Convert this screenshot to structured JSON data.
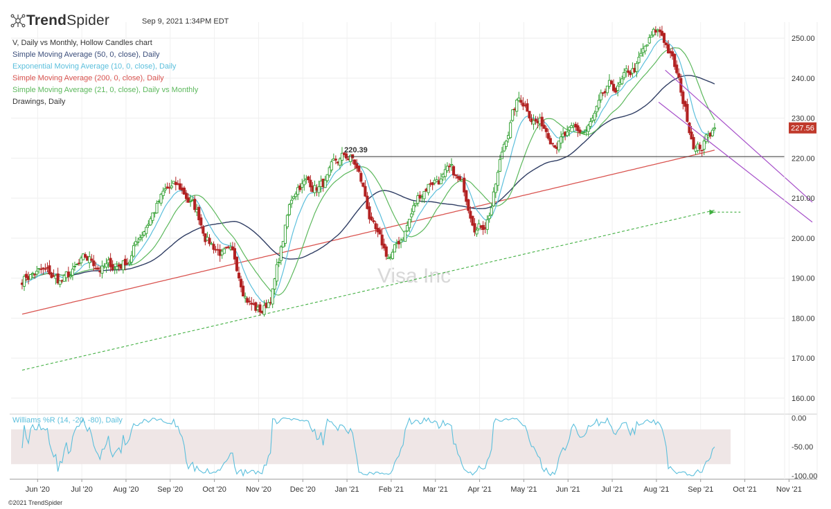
{
  "header": {
    "brand_light": "Trend",
    "brand_bold": "Spider",
    "timestamp": "Sep 9, 2021 1:34PM EDT",
    "copyright": "©2021 TrendSpider"
  },
  "indicators": [
    {
      "label": "V, Daily vs Monthly, Hollow Candles chart",
      "color": "#333333"
    },
    {
      "label": "Simple Moving Average (50, 0, close), Daily",
      "color": "#3a4d7a"
    },
    {
      "label": "Exponential Moving Average (10, 0, close), Daily",
      "color": "#5bbfdc"
    },
    {
      "label": "Simple Moving Average (200, 0, close), Daily",
      "color": "#d9534f"
    },
    {
      "label": "Simple Moving Average (21, 0, close), Daily vs Monthly",
      "color": "#5cb85c"
    },
    {
      "label": "Drawings, Daily",
      "color": "#333333"
    }
  ],
  "colors": {
    "up": "#2e9e2e",
    "down": "#b22222",
    "sma50": "#2f3d63",
    "ema10": "#5bbfdc",
    "sma200": "#d9534f",
    "sma21": "#5cb85c",
    "monthly_sma": "#3fae3f",
    "channel": "#a64fc9",
    "williams": "#5bbfdc",
    "williams_band": "#efe6e6"
  },
  "chart_data": {
    "type": "candlestick",
    "symbol": "V",
    "watermark": "Visa Inc",
    "price_axis": {
      "ticks": [
        160,
        170,
        180,
        190,
        200,
        210,
        220,
        230,
        240,
        250
      ],
      "ylim": [
        156,
        254
      ]
    },
    "x_ticks": [
      "Jun '20",
      "Jul '20",
      "Aug '20",
      "Sep '20",
      "Oct '20",
      "Nov '20",
      "Dec '20",
      "Jan '21",
      "Feb '21",
      "Mar '21",
      "Apr '21",
      "May '21",
      "Jun '21",
      "Jul '21",
      "Aug '21",
      "Sep '21",
      "Oct '21",
      "Nov '21"
    ],
    "last_price": {
      "value": 227.56,
      "label": "227.56",
      "color": "#c0392b"
    },
    "horizontal_level": {
      "value": 220.39,
      "label": "220.39",
      "from": "Jan '21"
    },
    "close_path": [
      [
        "Jun '20",
        190
      ],
      [
        "Jul '20",
        191
      ],
      [
        "Aug '20",
        195
      ],
      [
        "Sep '20",
        213
      ],
      [
        "Oct '20",
        200
      ],
      [
        "Nov '20",
        182
      ],
      [
        "Dec '20",
        213
      ],
      [
        "Jan '21",
        218
      ],
      [
        "Feb '21",
        195
      ],
      [
        "Mar '21",
        217
      ],
      [
        "Apr '21",
        206
      ],
      [
        "May '21",
        234
      ],
      [
        "Jun '21",
        224
      ],
      [
        "Jul '21",
        234
      ],
      [
        "Aug '21",
        250
      ],
      [
        "Sep '21",
        225
      ],
      [
        "Sep 9 '21",
        227.56
      ]
    ],
    "williams_r": {
      "label": "Williams %R (14, -20, -80), Daily",
      "ticks": [
        "0.00",
        "-50.00",
        "-100.00"
      ],
      "band": [
        -20,
        -80
      ],
      "ylim": [
        -106,
        4
      ]
    }
  }
}
